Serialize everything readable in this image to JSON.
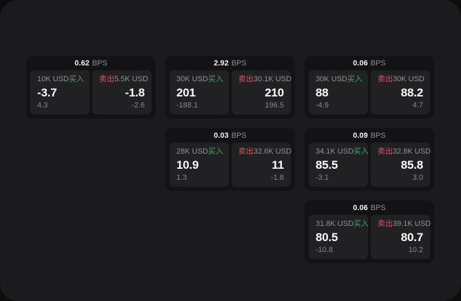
{
  "labels": {
    "buy": "买入",
    "sell": "卖出",
    "bps": "BPS"
  },
  "colors": {
    "buy_green": "#46a567",
    "sell_red": "#d25667",
    "page_bg": "#1b1b1d",
    "card_bg": "#131315",
    "panel_bg": "#212124",
    "outer_bg": "#0d0d0d"
  },
  "cards": [
    {
      "bps_value": "0.62",
      "buy": {
        "amount": "10K USD",
        "price": "-3.7",
        "delta": "4.3"
      },
      "sell": {
        "amount": "5.5K USD",
        "price": "-1.8",
        "delta": "-2.6"
      }
    },
    {
      "bps_value": "2.92",
      "buy": {
        "amount": "30K USD",
        "price": "201",
        "delta": "-188.1"
      },
      "sell": {
        "amount": "30.1K USD",
        "price": "210",
        "delta": "196.5"
      }
    },
    {
      "bps_value": "0.06",
      "buy": {
        "amount": "30K USD",
        "price": "88",
        "delta": "-4.9"
      },
      "sell": {
        "amount": "30K USD",
        "price": "88.2",
        "delta": "4.7"
      }
    },
    {
      "bps_value": "0.03",
      "buy": {
        "amount": "28K USD",
        "price": "10.9",
        "delta": "1.3"
      },
      "sell": {
        "amount": "32.6K USD",
        "price": "11",
        "delta": "-1.8"
      }
    },
    {
      "bps_value": "0.09",
      "buy": {
        "amount": "34.1K USD",
        "price": "85.5",
        "delta": "-3.1"
      },
      "sell": {
        "amount": "32.8K USD",
        "price": "85.8",
        "delta": "3.0"
      }
    },
    {
      "bps_value": "0.06",
      "buy": {
        "amount": "31.8K USD",
        "price": "80.5",
        "delta": "-10.8"
      },
      "sell": {
        "amount": "39.1K USD",
        "price": "80.7",
        "delta": "10.2"
      }
    }
  ]
}
